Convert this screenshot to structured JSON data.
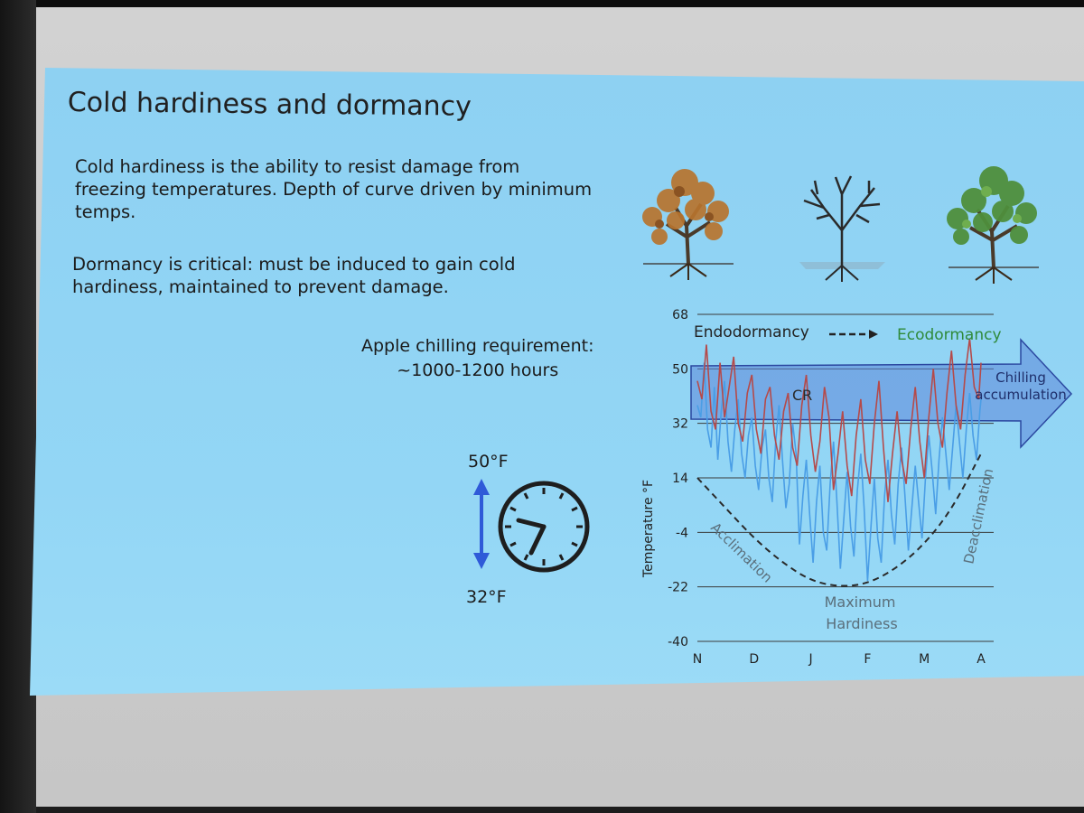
{
  "slide": {
    "title": "Cold hardiness and dormancy",
    "paragraph1": [
      "Cold hardiness is the ability to resist damage from",
      "freezing temperatures. Depth of curve driven by minimum",
      "temps."
    ],
    "paragraph2": [
      "Dormancy is critical: must be induced to gain cold",
      "hardiness, maintained to prevent damage."
    ],
    "chilling_requirement": [
      "Apple chilling requirement:",
      "~1000-1200 hours"
    ],
    "range_high": "50°F",
    "range_low": "32°F",
    "icons": [
      "autumn-tree-icon",
      "bare-tree-icon",
      "leafy-tree-icon",
      "double-arrow-icon",
      "clock-icon"
    ]
  },
  "colors": {
    "background": "#93d6f5",
    "blue_trace": "#4a9ee6",
    "red_trace": "#b54a4a",
    "arrow_fill": "#5d86d8",
    "ecodormancy": "#2f8a3a",
    "arrow_icon": "#2f5ad8"
  },
  "chart_data": {
    "type": "line",
    "ylabel": "Temperature °F",
    "yticks": [
      68,
      50,
      32,
      14,
      -4,
      -22,
      -40
    ],
    "ylim": [
      -40,
      68
    ],
    "xticks": [
      "N",
      "D",
      "J",
      "F",
      "M",
      "A"
    ],
    "grid": true,
    "labels": {
      "endodormancy": "Endodormancy",
      "ecodormancy": "Ecodormancy",
      "chilling": [
        "Chilling",
        "accumulation"
      ],
      "cr": "CR",
      "acclimation": "Acclimation",
      "deacclimation": "Deacclimation",
      "max_hardiness": [
        "Maximum",
        "Hardiness"
      ]
    },
    "series": [
      {
        "x": [
          0,
          0.06,
          0.12,
          0.18,
          0.24,
          0.3,
          0.36,
          0.42,
          0.48,
          0.54,
          0.6,
          0.66,
          0.72,
          0.78,
          0.84,
          0.9,
          0.96,
          1.02,
          1.08,
          1.14,
          1.2,
          1.26,
          1.32,
          1.38,
          1.44,
          1.5,
          1.56,
          1.62,
          1.68,
          1.74,
          1.8,
          1.86,
          1.92,
          1.98,
          2.04,
          2.1,
          2.16,
          2.22,
          2.28,
          2.34,
          2.4,
          2.46,
          2.52,
          2.58,
          2.64,
          2.7,
          2.76,
          2.82,
          2.88,
          2.94,
          3.0,
          3.06,
          3.12,
          3.18,
          3.24,
          3.3,
          3.36,
          3.42,
          3.48,
          3.54,
          3.6,
          3.66,
          3.72,
          3.78,
          3.84,
          3.9,
          3.96,
          4.02,
          4.08,
          4.14,
          4.2,
          4.26,
          4.32,
          4.38,
          4.44,
          4.5,
          4.56,
          4.62,
          4.68,
          4.74,
          4.8,
          4.86,
          4.92,
          4.98,
          5.0
        ],
        "y": [
          38,
          34,
          52,
          30,
          24,
          44,
          20,
          36,
          46,
          26,
          16,
          30,
          40,
          22,
          14,
          28,
          34,
          18,
          10,
          24,
          30,
          14,
          6,
          26,
          38,
          20,
          4,
          12,
          32,
          22,
          -8,
          8,
          20,
          2,
          -14,
          6,
          18,
          -4,
          -10,
          12,
          26,
          6,
          -16,
          0,
          16,
          -2,
          -12,
          10,
          22,
          4,
          -20,
          -2,
          14,
          -6,
          -14,
          8,
          20,
          2,
          -8,
          12,
          24,
          8,
          -10,
          4,
          18,
          6,
          -6,
          14,
          28,
          16,
          2,
          20,
          34,
          22,
          10,
          24,
          38,
          26,
          14,
          30,
          42,
          28,
          20,
          36,
          40
        ]
      },
      {
        "x": [
          0,
          0.08,
          0.16,
          0.24,
          0.32,
          0.4,
          0.48,
          0.56,
          0.64,
          0.72,
          0.8,
          0.88,
          0.96,
          1.04,
          1.12,
          1.2,
          1.28,
          1.36,
          1.44,
          1.52,
          1.6,
          1.68,
          1.76,
          1.84,
          1.92,
          2.0,
          2.08,
          2.16,
          2.24,
          2.32,
          2.4,
          2.48,
          2.56,
          2.64,
          2.72,
          2.8,
          2.88,
          2.96,
          3.04,
          3.12,
          3.2,
          3.28,
          3.36,
          3.44,
          3.52,
          3.6,
          3.68,
          3.76,
          3.84,
          3.92,
          4.0,
          4.08,
          4.16,
          4.24,
          4.32,
          4.4,
          4.48,
          4.56,
          4.64,
          4.72,
          4.8,
          4.88,
          4.96,
          5.0
        ],
        "y": [
          46,
          40,
          58,
          36,
          30,
          52,
          34,
          44,
          54,
          32,
          26,
          42,
          48,
          30,
          22,
          40,
          44,
          28,
          20,
          36,
          42,
          24,
          18,
          38,
          48,
          28,
          16,
          26,
          44,
          34,
          10,
          22,
          36,
          18,
          8,
          28,
          40,
          20,
          12,
          32,
          46,
          24,
          6,
          22,
          36,
          20,
          12,
          30,
          44,
          26,
          14,
          34,
          50,
          32,
          24,
          42,
          56,
          38,
          30,
          48,
          60,
          44,
          40,
          52
        ]
      }
    ],
    "hardiness_curve": {
      "x": [
        0,
        0.5,
        1,
        1.5,
        2,
        2.5,
        3,
        3.5,
        4,
        4.5,
        5
      ],
      "y": [
        14,
        4,
        -6,
        -14,
        -20,
        -22,
        -21,
        -16,
        -8,
        4,
        22
      ]
    }
  }
}
